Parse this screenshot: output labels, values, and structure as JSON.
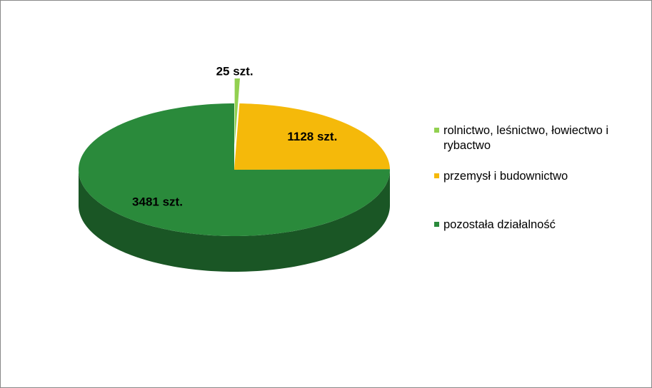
{
  "chart_data": {
    "type": "pie",
    "categories": [
      "rolnictwo, leśnictwo, łowiectwo i rybactwo",
      "przemysł i budownictwo",
      "pozostała działalność"
    ],
    "values": [
      25,
      1128,
      3481
    ],
    "value_labels": [
      "25 szt.",
      "1128 szt.",
      "3481 szt."
    ],
    "colors": [
      "#92d050",
      "#f5b90a",
      "#2a8a3b"
    ]
  }
}
